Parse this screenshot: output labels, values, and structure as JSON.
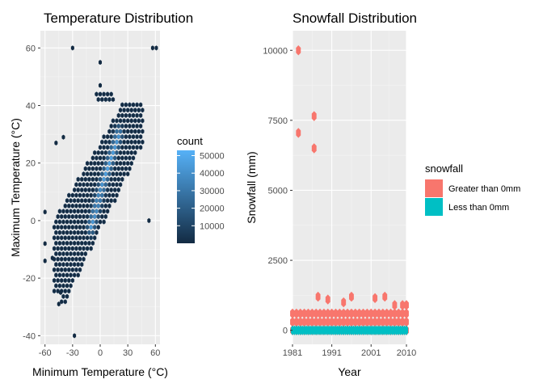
{
  "colors": {
    "panel_bg": "#ebebeb",
    "grid_major": "#ffffff",
    "grid_minor": "#f4f4f4",
    "hex_low": "#132b43",
    "hex_high": "#56b1f7",
    "hex_stroke": "#3d5b7b",
    "snow_greater": "#f8766d",
    "snow_less": "#00bfc4",
    "text": "#000000",
    "tick_text": "#4d4d4d"
  },
  "chart_data": [
    {
      "type": "heatmap",
      "subtype": "hexbin",
      "title": "Temperature Distribution",
      "xlabel": "Minimum Temperature (°C)",
      "ylabel": "Maximum Temperature (°C)",
      "xlim": [
        -65,
        65
      ],
      "ylim": [
        -43,
        66
      ],
      "xticks": [
        -60,
        -30,
        0,
        30,
        60
      ],
      "yticks": [
        -40,
        -20,
        0,
        20,
        40,
        60
      ],
      "grid": true,
      "legend": {
        "title": "count",
        "labels": [
          "50000",
          "40000",
          "30000",
          "20000",
          "10000"
        ],
        "values": [
          50000,
          40000,
          30000,
          20000,
          10000
        ],
        "min": 1,
        "max": 53000,
        "placement": "right"
      },
      "outlier_points": [
        {
          "x": -30,
          "y": 60
        },
        {
          "x": 57,
          "y": 60
        },
        {
          "x": 61,
          "y": 60
        },
        {
          "x": 0,
          "y": 55
        },
        {
          "x": 0,
          "y": 47
        },
        {
          "x": -48,
          "y": 27
        },
        {
          "x": -40,
          "y": 29
        },
        {
          "x": -60,
          "y": 3
        },
        {
          "x": -60,
          "y": -8
        },
        {
          "x": -60,
          "y": -14
        },
        {
          "x": -52,
          "y": -13
        },
        {
          "x": -28,
          "y": -40
        },
        {
          "x": 53,
          "y": 0
        },
        {
          "x": -45,
          "y": -29
        },
        {
          "x": -43,
          "y": -25
        }
      ],
      "main_cloud": {
        "band_center_at_x_min": [
          -45,
          -15
        ],
        "band_center_at_x_max": [
          30,
          30
        ],
        "high_density_ridge": [
          [
            -10,
            -2
          ],
          [
            5,
            15
          ],
          [
            20,
            30
          ]
        ]
      }
    },
    {
      "type": "scatter",
      "subtype": "hexbin",
      "title": "Snowfall Distribution",
      "xlabel": "Year",
      "ylabel": "Snowfall (mm)",
      "xlim": [
        1981,
        2010
      ],
      "ylim": [
        -500,
        10700
      ],
      "xticks": [
        1981,
        1991,
        2001,
        2010
      ],
      "yticks": [
        0,
        2500,
        5000,
        7500,
        10000
      ],
      "grid": true,
      "legend": {
        "title": "snowfall",
        "entries": [
          "Greater than 0mm",
          "Less than 0mm"
        ],
        "placement": "right"
      },
      "series": [
        {
          "name": "Greater than 0mm",
          "points": [
            {
              "x": 1982.5,
              "y": 10000
            },
            {
              "x": 1982.5,
              "y": 7050
            },
            {
              "x": 1986.5,
              "y": 7650
            },
            {
              "x": 1986.5,
              "y": 6500
            },
            {
              "x": 1987.5,
              "y": 1200
            },
            {
              "x": 1990,
              "y": 1100
            },
            {
              "x": 1994,
              "y": 1000
            },
            {
              "x": 1996,
              "y": 1200
            },
            {
              "x": 2002,
              "y": 1150
            },
            {
              "x": 2004.5,
              "y": 1200
            },
            {
              "x": 2007,
              "y": 900
            },
            {
              "x": 2009,
              "y": 900
            },
            {
              "x": 2010,
              "y": 900
            }
          ],
          "band_ymax": 600
        },
        {
          "name": "Less than 0mm",
          "band_y": 0
        }
      ]
    }
  ]
}
